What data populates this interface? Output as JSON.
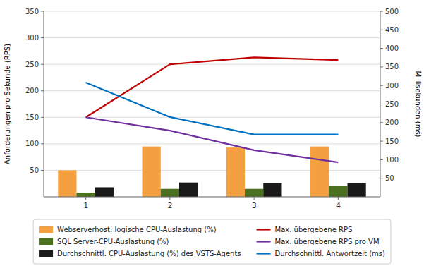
{
  "chart_data": {
    "type": "bar",
    "categories": [
      "1",
      "2",
      "3",
      "4"
    ],
    "y_label": "Anforderungen pro Sekunde (RPS)",
    "y2_label": "Millisekunden (ms)",
    "ylim": [
      0,
      350
    ],
    "yticks": [
      50,
      100,
      150,
      200,
      250,
      300,
      350
    ],
    "y2lim": [
      0,
      500
    ],
    "y2ticks": [
      50,
      100,
      150,
      200,
      250,
      300,
      350,
      400,
      450,
      500
    ],
    "grid": true,
    "legend": "bottom",
    "series": [
      {
        "name": "Webserverhost: logische CPU-Auslastung (%)",
        "type": "bar",
        "color": "#F5A040",
        "values": [
          50,
          95,
          93,
          95
        ]
      },
      {
        "name": "SQL Server-CPU-Auslastung (%)",
        "type": "bar",
        "color": "#4B7020",
        "values": [
          8,
          15,
          15,
          20
        ]
      },
      {
        "name": "Durchschnittl. CPU-Auslastung (%) des VSTS-Agents",
        "type": "bar",
        "color": "#1A1A1A",
        "values": [
          18,
          27,
          26,
          26
        ]
      },
      {
        "name": "Max. übergebene RPS",
        "type": "line",
        "color": "#C00000",
        "values": [
          150,
          250,
          263,
          258
        ]
      },
      {
        "name": "Max. übergebene RPS pro VM",
        "type": "line",
        "color": "#7030A0",
        "values": [
          150,
          125,
          88,
          65
        ]
      },
      {
        "name": "Durchschnittl. Antwortzeit (ms)",
        "type": "line",
        "axis": "y2",
        "color": "#0070C0",
        "values": [
          308,
          215,
          168,
          168
        ]
      }
    ]
  }
}
